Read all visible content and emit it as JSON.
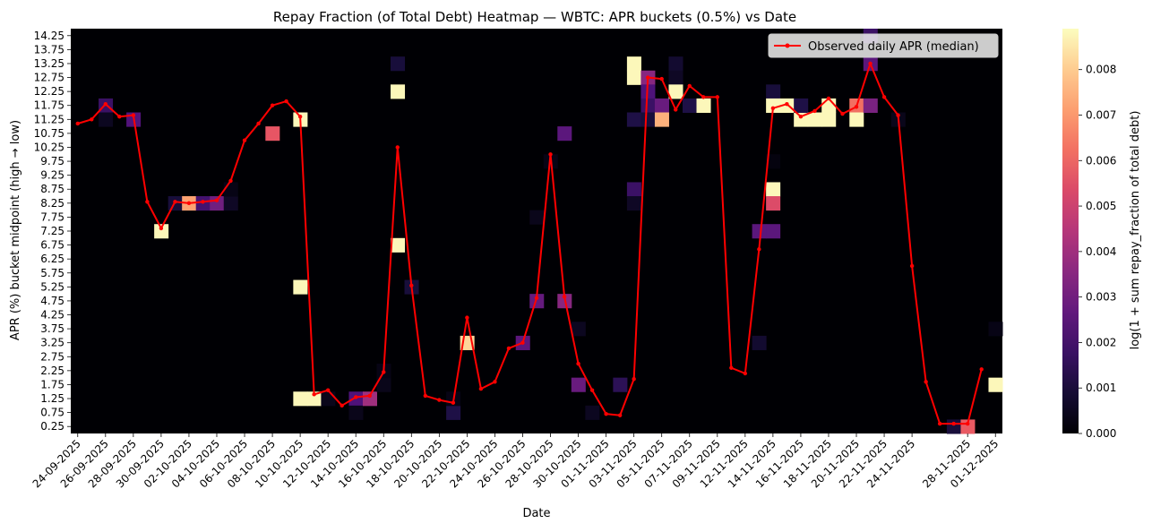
{
  "chart_data": {
    "type": "heatmap",
    "title": "Repay Fraction (of Total Debt) Heatmap — WBTC: APR buckets (0.5%) vs Date",
    "xlabel": "Date",
    "ylabel": "APR (%) bucket midpoint (high → low)",
    "colorbar_label": "log(1 + sum repay_fraction of total debt)",
    "colormap": "magma",
    "vmin": 0.0,
    "vmax": 0.0089,
    "colorbar_ticks": [
      "0.000",
      "0.001",
      "0.002",
      "0.003",
      "0.004",
      "0.005",
      "0.006",
      "0.007",
      "0.008"
    ],
    "colorbar_tick_values": [
      0.0,
      0.001,
      0.002,
      0.003,
      0.004,
      0.005,
      0.006,
      0.007,
      0.008
    ],
    "y_buckets": [
      14.25,
      13.75,
      13.25,
      12.75,
      12.25,
      11.75,
      11.25,
      10.75,
      10.25,
      9.75,
      9.25,
      8.75,
      8.25,
      7.75,
      7.25,
      6.75,
      6.25,
      5.75,
      5.25,
      4.75,
      4.25,
      3.75,
      3.25,
      2.75,
      2.25,
      1.75,
      1.25,
      0.75,
      0.25
    ],
    "y_tick_labels": [
      "14.25",
      "13.75",
      "13.25",
      "12.75",
      "12.25",
      "11.75",
      "11.25",
      "10.75",
      "10.25",
      "9.75",
      "9.25",
      "8.75",
      "8.25",
      "7.75",
      "7.25",
      "6.75",
      "6.25",
      "5.75",
      "5.25",
      "4.75",
      "4.25",
      "3.75",
      "3.25",
      "2.75",
      "2.25",
      "1.75",
      "1.25",
      "0.75",
      "0.25"
    ],
    "dates": [
      "24-09-2025",
      "25-09-2025",
      "26-09-2025",
      "27-09-2025",
      "28-09-2025",
      "29-09-2025",
      "30-09-2025",
      "01-10-2025",
      "02-10-2025",
      "03-10-2025",
      "04-10-2025",
      "05-10-2025",
      "06-10-2025",
      "07-10-2025",
      "08-10-2025",
      "09-10-2025",
      "10-10-2025",
      "11-10-2025",
      "12-10-2025",
      "13-10-2025",
      "14-10-2025",
      "15-10-2025",
      "16-10-2025",
      "17-10-2025",
      "18-10-2025",
      "19-10-2025",
      "20-10-2025",
      "21-10-2025",
      "22-10-2025",
      "23-10-2025",
      "24-10-2025",
      "25-10-2025",
      "26-10-2025",
      "27-10-2025",
      "28-10-2025",
      "29-10-2025",
      "30-10-2025",
      "31-10-2025",
      "01-11-2025",
      "02-11-2025",
      "03-11-2025",
      "04-11-2025",
      "05-11-2025",
      "06-11-2025",
      "07-11-2025",
      "08-11-2025",
      "09-11-2025",
      "11-11-2025",
      "12-11-2025",
      "13-11-2025",
      "14-11-2025",
      "15-11-2025",
      "16-11-2025",
      "17-11-2025",
      "18-11-2025",
      "19-11-2025",
      "20-11-2025",
      "21-11-2025",
      "22-11-2025",
      "23-11-2025",
      "24-11-2025",
      "25-11-2025",
      "26-11-2025",
      "27-11-2025",
      "28-11-2025",
      "30-11-2025",
      "01-12-2025"
    ],
    "x_tick_labels": [
      "24-09-2025",
      "26-09-2025",
      "28-09-2025",
      "30-09-2025",
      "02-10-2025",
      "04-10-2025",
      "06-10-2025",
      "08-10-2025",
      "10-10-2025",
      "12-10-2025",
      "14-10-2025",
      "16-10-2025",
      "18-10-2025",
      "20-10-2025",
      "22-10-2025",
      "24-10-2025",
      "26-10-2025",
      "28-10-2025",
      "30-10-2025",
      "01-11-2025",
      "03-11-2025",
      "05-11-2025",
      "07-11-2025",
      "09-11-2025",
      "12-11-2025",
      "14-11-2025",
      "16-11-2025",
      "18-11-2025",
      "20-11-2025",
      "22-11-2025",
      "24-11-2025",
      "28-11-2025",
      "01-12-2025"
    ],
    "cells": [
      {
        "date": "26-09-2025",
        "apr": 11.75,
        "value": 0.0018
      },
      {
        "date": "26-09-2025",
        "apr": 11.25,
        "value": 0.0005
      },
      {
        "date": "28-09-2025",
        "apr": 11.25,
        "value": 0.0023
      },
      {
        "date": "30-09-2025",
        "apr": 7.25,
        "value": 0.0088
      },
      {
        "date": "01-10-2025",
        "apr": 8.25,
        "value": 0.001
      },
      {
        "date": "02-10-2025",
        "apr": 8.25,
        "value": 0.0072
      },
      {
        "date": "03-10-2025",
        "apr": 8.25,
        "value": 0.002
      },
      {
        "date": "04-10-2025",
        "apr": 8.25,
        "value": 0.003
      },
      {
        "date": "05-10-2025",
        "apr": 8.25,
        "value": 0.0006
      },
      {
        "date": "05-10-2025",
        "apr": 8.75,
        "value": 0.0003
      },
      {
        "date": "08-10-2025",
        "apr": 10.75,
        "value": 0.0057
      },
      {
        "date": "10-10-2025",
        "apr": 11.25,
        "value": 0.0088
      },
      {
        "date": "10-10-2025",
        "apr": 5.25,
        "value": 0.0088
      },
      {
        "date": "10-10-2025",
        "apr": 1.25,
        "value": 0.0088
      },
      {
        "date": "11-10-2025",
        "apr": 1.25,
        "value": 0.0088
      },
      {
        "date": "12-10-2025",
        "apr": 1.25,
        "value": 0.0004
      },
      {
        "date": "14-10-2025",
        "apr": 1.25,
        "value": 0.0022
      },
      {
        "date": "14-10-2025",
        "apr": 0.75,
        "value": 0.0004
      },
      {
        "date": "15-10-2025",
        "apr": 1.25,
        "value": 0.004
      },
      {
        "date": "16-10-2025",
        "apr": 1.75,
        "value": 0.0004
      },
      {
        "date": "16-10-2025",
        "apr": 2.25,
        "value": 0.0003
      },
      {
        "date": "17-10-2025",
        "apr": 13.25,
        "value": 0.001
      },
      {
        "date": "17-10-2025",
        "apr": 12.25,
        "value": 0.0088
      },
      {
        "date": "17-10-2025",
        "apr": 6.75,
        "value": 0.0088
      },
      {
        "date": "18-10-2025",
        "apr": 5.25,
        "value": 0.001
      },
      {
        "date": "21-10-2025",
        "apr": 0.75,
        "value": 0.0012
      },
      {
        "date": "21-10-2025",
        "apr": 1.25,
        "value": 0.0003
      },
      {
        "date": "22-10-2025",
        "apr": 3.25,
        "value": 0.0082
      },
      {
        "date": "26-10-2025",
        "apr": 3.25,
        "value": 0.0025
      },
      {
        "date": "27-10-2025",
        "apr": 4.75,
        "value": 0.0027
      },
      {
        "date": "27-10-2025",
        "apr": 7.75,
        "value": 0.0004
      },
      {
        "date": "28-10-2025",
        "apr": 9.75,
        "value": 0.0003
      },
      {
        "date": "29-10-2025",
        "apr": 10.75,
        "value": 0.0025
      },
      {
        "date": "29-10-2025",
        "apr": 4.75,
        "value": 0.0035
      },
      {
        "date": "30-10-2025",
        "apr": 3.75,
        "value": 0.0005
      },
      {
        "date": "30-10-2025",
        "apr": 1.75,
        "value": 0.0028
      },
      {
        "date": "31-10-2025",
        "apr": 0.75,
        "value": 0.0005
      },
      {
        "date": "02-11-2025",
        "apr": 1.75,
        "value": 0.0015
      },
      {
        "date": "03-11-2025",
        "apr": 11.25,
        "value": 0.0012
      },
      {
        "date": "03-11-2025",
        "apr": 8.75,
        "value": 0.0018
      },
      {
        "date": "03-11-2025",
        "apr": 8.25,
        "value": 0.0006
      },
      {
        "date": "03-11-2025",
        "apr": 13.25,
        "value": 0.0088
      },
      {
        "date": "03-11-2025",
        "apr": 12.75,
        "value": 0.0088
      },
      {
        "date": "04-11-2025",
        "apr": 12.75,
        "value": 0.0035
      },
      {
        "date": "04-11-2025",
        "apr": 12.25,
        "value": 0.0022
      },
      {
        "date": "04-11-2025",
        "apr": 11.75,
        "value": 0.0018
      },
      {
        "date": "04-11-2025",
        "apr": 11.25,
        "value": 0.001
      },
      {
        "date": "05-11-2025",
        "apr": 11.75,
        "value": 0.0028
      },
      {
        "date": "05-11-2025",
        "apr": 11.25,
        "value": 0.0075
      },
      {
        "date": "06-11-2025",
        "apr": 13.25,
        "value": 0.0008
      },
      {
        "date": "06-11-2025",
        "apr": 12.75,
        "value": 0.0006
      },
      {
        "date": "06-11-2025",
        "apr": 12.25,
        "value": 0.0088
      },
      {
        "date": "07-11-2025",
        "apr": 11.75,
        "value": 0.0012
      },
      {
        "date": "08-11-2025",
        "apr": 11.75,
        "value": 0.0088
      },
      {
        "date": "13-11-2025",
        "apr": 7.25,
        "value": 0.0025
      },
      {
        "date": "13-11-2025",
        "apr": 3.25,
        "value": 0.0008
      },
      {
        "date": "14-11-2025",
        "apr": 12.25,
        "value": 0.001
      },
      {
        "date": "14-11-2025",
        "apr": 11.75,
        "value": 0.0088
      },
      {
        "date": "14-11-2025",
        "apr": 9.75,
        "value": 0.0002
      },
      {
        "date": "14-11-2025",
        "apr": 8.75,
        "value": 0.0088
      },
      {
        "date": "14-11-2025",
        "apr": 8.25,
        "value": 0.0054
      },
      {
        "date": "14-11-2025",
        "apr": 7.25,
        "value": 0.0025
      },
      {
        "date": "15-11-2025",
        "apr": 11.75,
        "value": 0.0088
      },
      {
        "date": "16-11-2025",
        "apr": 11.25,
        "value": 0.0088
      },
      {
        "date": "16-11-2025",
        "apr": 11.75,
        "value": 0.0012
      },
      {
        "date": "17-11-2025",
        "apr": 11.25,
        "value": 0.0088
      },
      {
        "date": "18-11-2025",
        "apr": 11.25,
        "value": 0.0088
      },
      {
        "date": "18-11-2025",
        "apr": 11.75,
        "value": 0.0088
      },
      {
        "date": "20-11-2025",
        "apr": 11.75,
        "value": 0.0062
      },
      {
        "date": "20-11-2025",
        "apr": 11.25,
        "value": 0.0088
      },
      {
        "date": "21-11-2025",
        "apr": 13.25,
        "value": 0.0025
      },
      {
        "date": "21-11-2025",
        "apr": 14.25,
        "value": 0.0018
      },
      {
        "date": "21-11-2025",
        "apr": 11.75,
        "value": 0.0032
      },
      {
        "date": "23-11-2025",
        "apr": 11.25,
        "value": 0.0004
      },
      {
        "date": "27-11-2025",
        "apr": 0.25,
        "value": 0.001
      },
      {
        "date": "28-11-2025",
        "apr": 0.25,
        "value": 0.0058
      },
      {
        "date": "01-12-2025",
        "apr": 1.75,
        "value": 0.0088
      },
      {
        "date": "01-12-2025",
        "apr": 3.75,
        "value": 0.0003
      }
    ],
    "line_series": {
      "name": "Observed daily APR (median)",
      "color": "#ff0000",
      "values": [
        11.1,
        11.25,
        11.8,
        11.35,
        11.4,
        8.3,
        7.35,
        8.3,
        8.25,
        8.3,
        8.35,
        9.05,
        10.5,
        11.1,
        11.75,
        11.9,
        11.35,
        1.4,
        1.55,
        1.0,
        1.3,
        1.35,
        2.2,
        10.25,
        5.3,
        1.35,
        1.2,
        1.1,
        4.15,
        1.6,
        1.85,
        3.05,
        3.25,
        4.85,
        10.0,
        4.9,
        2.5,
        1.55,
        0.7,
        0.65,
        1.95,
        12.75,
        12.7,
        11.6,
        12.45,
        12.05,
        12.05,
        2.35,
        2.15,
        6.6,
        11.65,
        11.8,
        11.35,
        11.55,
        12.0,
        11.45,
        11.7,
        13.25,
        12.05,
        11.4,
        6.0,
        1.85,
        0.35,
        0.35,
        0.35,
        2.3,
        null
      ]
    },
    "legend_position": "upper right",
    "grid": false
  }
}
